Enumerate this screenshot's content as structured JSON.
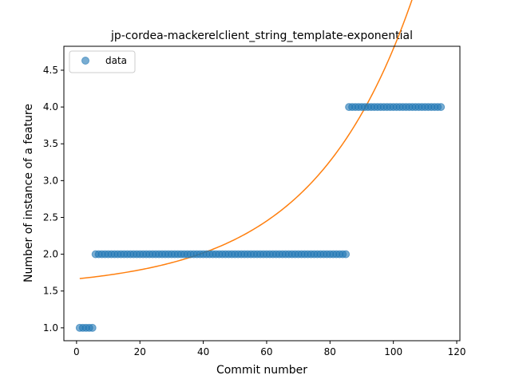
{
  "chart_data": {
    "type": "scatter",
    "title": "jp-cordea-mackerelclient_string_template-exponential",
    "xlabel": "Commit number",
    "ylabel": "Number of instance of a feature",
    "xlim": [
      -4,
      121
    ],
    "ylim": [
      0.825,
      4.825
    ],
    "xticks": [
      0,
      20,
      40,
      60,
      80,
      100,
      120
    ],
    "yticks": [
      1.0,
      1.5,
      2.0,
      2.5,
      3.0,
      3.5,
      4.0,
      4.5
    ],
    "xtick_labels": [
      "0",
      "20",
      "40",
      "60",
      "80",
      "100",
      "120"
    ],
    "ytick_labels": [
      "1.0",
      "1.5",
      "2.0",
      "2.5",
      "3.0",
      "3.5",
      "4.0",
      "4.5"
    ],
    "legend": {
      "position": "top-left",
      "entries": [
        "data"
      ]
    },
    "series": [
      {
        "name": "data",
        "kind": "scatter",
        "color": "#1f77b4",
        "segments": [
          {
            "x_start": 1,
            "x_end": 5,
            "y": 1
          },
          {
            "x_start": 6,
            "x_end": 85,
            "y": 2
          },
          {
            "x_start": 86,
            "x_end": 115,
            "y": 4
          }
        ]
      },
      {
        "name": "exponential fit",
        "kind": "line",
        "color": "#ff7f0e",
        "model": "y = a * exp(b * x) + c",
        "params": {
          "a": 0.14,
          "b": 0.0315,
          "c": 1.5247
        },
        "x_range": [
          1,
          115
        ]
      }
    ]
  }
}
